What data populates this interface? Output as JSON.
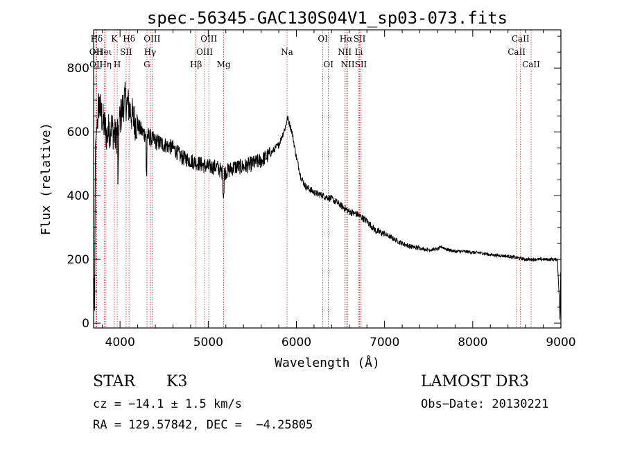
{
  "chart_data": {
    "type": "line",
    "title": "spec-56345-GAC130S04V1_sp03-073.fits",
    "xlabel": "Wavelength (Å)",
    "ylabel": "Flux (relative)",
    "xlim": [
      3700,
      9000
    ],
    "ylim": [
      -15,
      920
    ],
    "xticks": [
      4000,
      5000,
      6000,
      7000,
      8000,
      9000
    ],
    "yticks": [
      0,
      200,
      400,
      600,
      800
    ],
    "xtick_labels": [
      "4000",
      "5000",
      "6000",
      "7000",
      "8000",
      "9000"
    ],
    "ytick_labels": [
      "0",
      "200",
      "400",
      "600",
      "800"
    ],
    "spectrum_anchor_points": [
      [
        3700,
        20
      ],
      [
        3705,
        160
      ],
      [
        3712,
        40
      ],
      [
        3720,
        560
      ],
      [
        3760,
        690
      ],
      [
        3800,
        640
      ],
      [
        3850,
        590
      ],
      [
        3900,
        620
      ],
      [
        3950,
        580
      ],
      [
        4000,
        640
      ],
      [
        4050,
        700
      ],
      [
        4100,
        680
      ],
      [
        4150,
        640
      ],
      [
        4200,
        620
      ],
      [
        4250,
        600
      ],
      [
        4300,
        590
      ],
      [
        4400,
        570
      ],
      [
        4500,
        560
      ],
      [
        4600,
        550
      ],
      [
        4700,
        520
      ],
      [
        4800,
        510
      ],
      [
        4900,
        500
      ],
      [
        5000,
        490
      ],
      [
        5100,
        490
      ],
      [
        5170,
        470
      ],
      [
        5300,
        490
      ],
      [
        5400,
        490
      ],
      [
        5500,
        500
      ],
      [
        5600,
        510
      ],
      [
        5700,
        530
      ],
      [
        5800,
        560
      ],
      [
        5870,
        610
      ],
      [
        5900,
        645
      ],
      [
        5950,
        600
      ],
      [
        6000,
        520
      ],
      [
        6050,
        460
      ],
      [
        6100,
        430
      ],
      [
        6200,
        410
      ],
      [
        6300,
        400
      ],
      [
        6400,
        390
      ],
      [
        6500,
        370
      ],
      [
        6600,
        350
      ],
      [
        6700,
        340
      ],
      [
        6800,
        320
      ],
      [
        6900,
        290
      ],
      [
        7000,
        280
      ],
      [
        7100,
        265
      ],
      [
        7200,
        250
      ],
      [
        7300,
        240
      ],
      [
        7400,
        235
      ],
      [
        7500,
        230
      ],
      [
        7600,
        232
      ],
      [
        7650,
        240
      ],
      [
        7700,
        232
      ],
      [
        7800,
        225
      ],
      [
        7900,
        225
      ],
      [
        8000,
        222
      ],
      [
        8100,
        220
      ],
      [
        8200,
        215
      ],
      [
        8300,
        212
      ],
      [
        8400,
        210
      ],
      [
        8500,
        205
      ],
      [
        8600,
        200
      ],
      [
        8700,
        200
      ],
      [
        8800,
        200
      ],
      [
        8900,
        200
      ],
      [
        8960,
        200
      ],
      [
        8985,
        60
      ],
      [
        8990,
        0
      ],
      [
        9000,
        200
      ]
    ],
    "line_markers": [
      {
        "label": "Hδ",
        "wavelength": 3735,
        "row": 0
      },
      {
        "label": "OII",
        "wavelength": 3727,
        "row": 1
      },
      {
        "label": "OII",
        "wavelength": 3729,
        "row": 2
      },
      {
        "label": "Heι",
        "wavelength": 3820,
        "row": 1
      },
      {
        "label": "Hη",
        "wavelength": 3835,
        "row": 2
      },
      {
        "label": "K",
        "wavelength": 3934,
        "row": 0
      },
      {
        "label": "SII",
        "wavelength": 4069,
        "row": 1
      },
      {
        "label": "H",
        "wavelength": 3968,
        "row": 2
      },
      {
        "label": "Hδ",
        "wavelength": 4102,
        "row": 0
      },
      {
        "label": "OIII",
        "wavelength": 4363,
        "row": 0
      },
      {
        "label": "Hγ",
        "wavelength": 4340,
        "row": 1
      },
      {
        "label": "G",
        "wavelength": 4305,
        "row": 2
      },
      {
        "label": "OIII",
        "wavelength": 5007,
        "row": 0
      },
      {
        "label": "OIII",
        "wavelength": 4959,
        "row": 1
      },
      {
        "label": "Hβ",
        "wavelength": 4861,
        "row": 2
      },
      {
        "label": "Mg",
        "wavelength": 5175,
        "row": 2
      },
      {
        "label": "Na",
        "wavelength": 5894,
        "row": 1
      },
      {
        "label": "OI",
        "wavelength": 6300,
        "row": 0
      },
      {
        "label": "OI",
        "wavelength": 6363,
        "row": 2
      },
      {
        "label": "Hα",
        "wavelength": 6563,
        "row": 0
      },
      {
        "label": "NII",
        "wavelength": 6548,
        "row": 1
      },
      {
        "label": "NII",
        "wavelength": 6583,
        "row": 2
      },
      {
        "label": "SII",
        "wavelength": 6716,
        "row": 0
      },
      {
        "label": "Li",
        "wavelength": 6708,
        "row": 1
      },
      {
        "label": "SII",
        "wavelength": 6731,
        "row": 2
      },
      {
        "label": "CaII",
        "wavelength": 8542,
        "row": 0
      },
      {
        "label": "CaII",
        "wavelength": 8498,
        "row": 1
      },
      {
        "label": "CaII",
        "wavelength": 8662,
        "row": 2
      }
    ],
    "colors": {
      "spectrum": "#000000",
      "marker_lines": "#cc2222",
      "axes": "#000000"
    }
  },
  "info": {
    "object_class": "STAR",
    "subclass": "K3",
    "survey": "LAMOST DR3",
    "redshift": "cz = −14.1 ± 1.5 km/s",
    "obs_date": "Obs−Date: 20130221",
    "coords": "RA = 129.57842, DEC =  −4.25805"
  }
}
